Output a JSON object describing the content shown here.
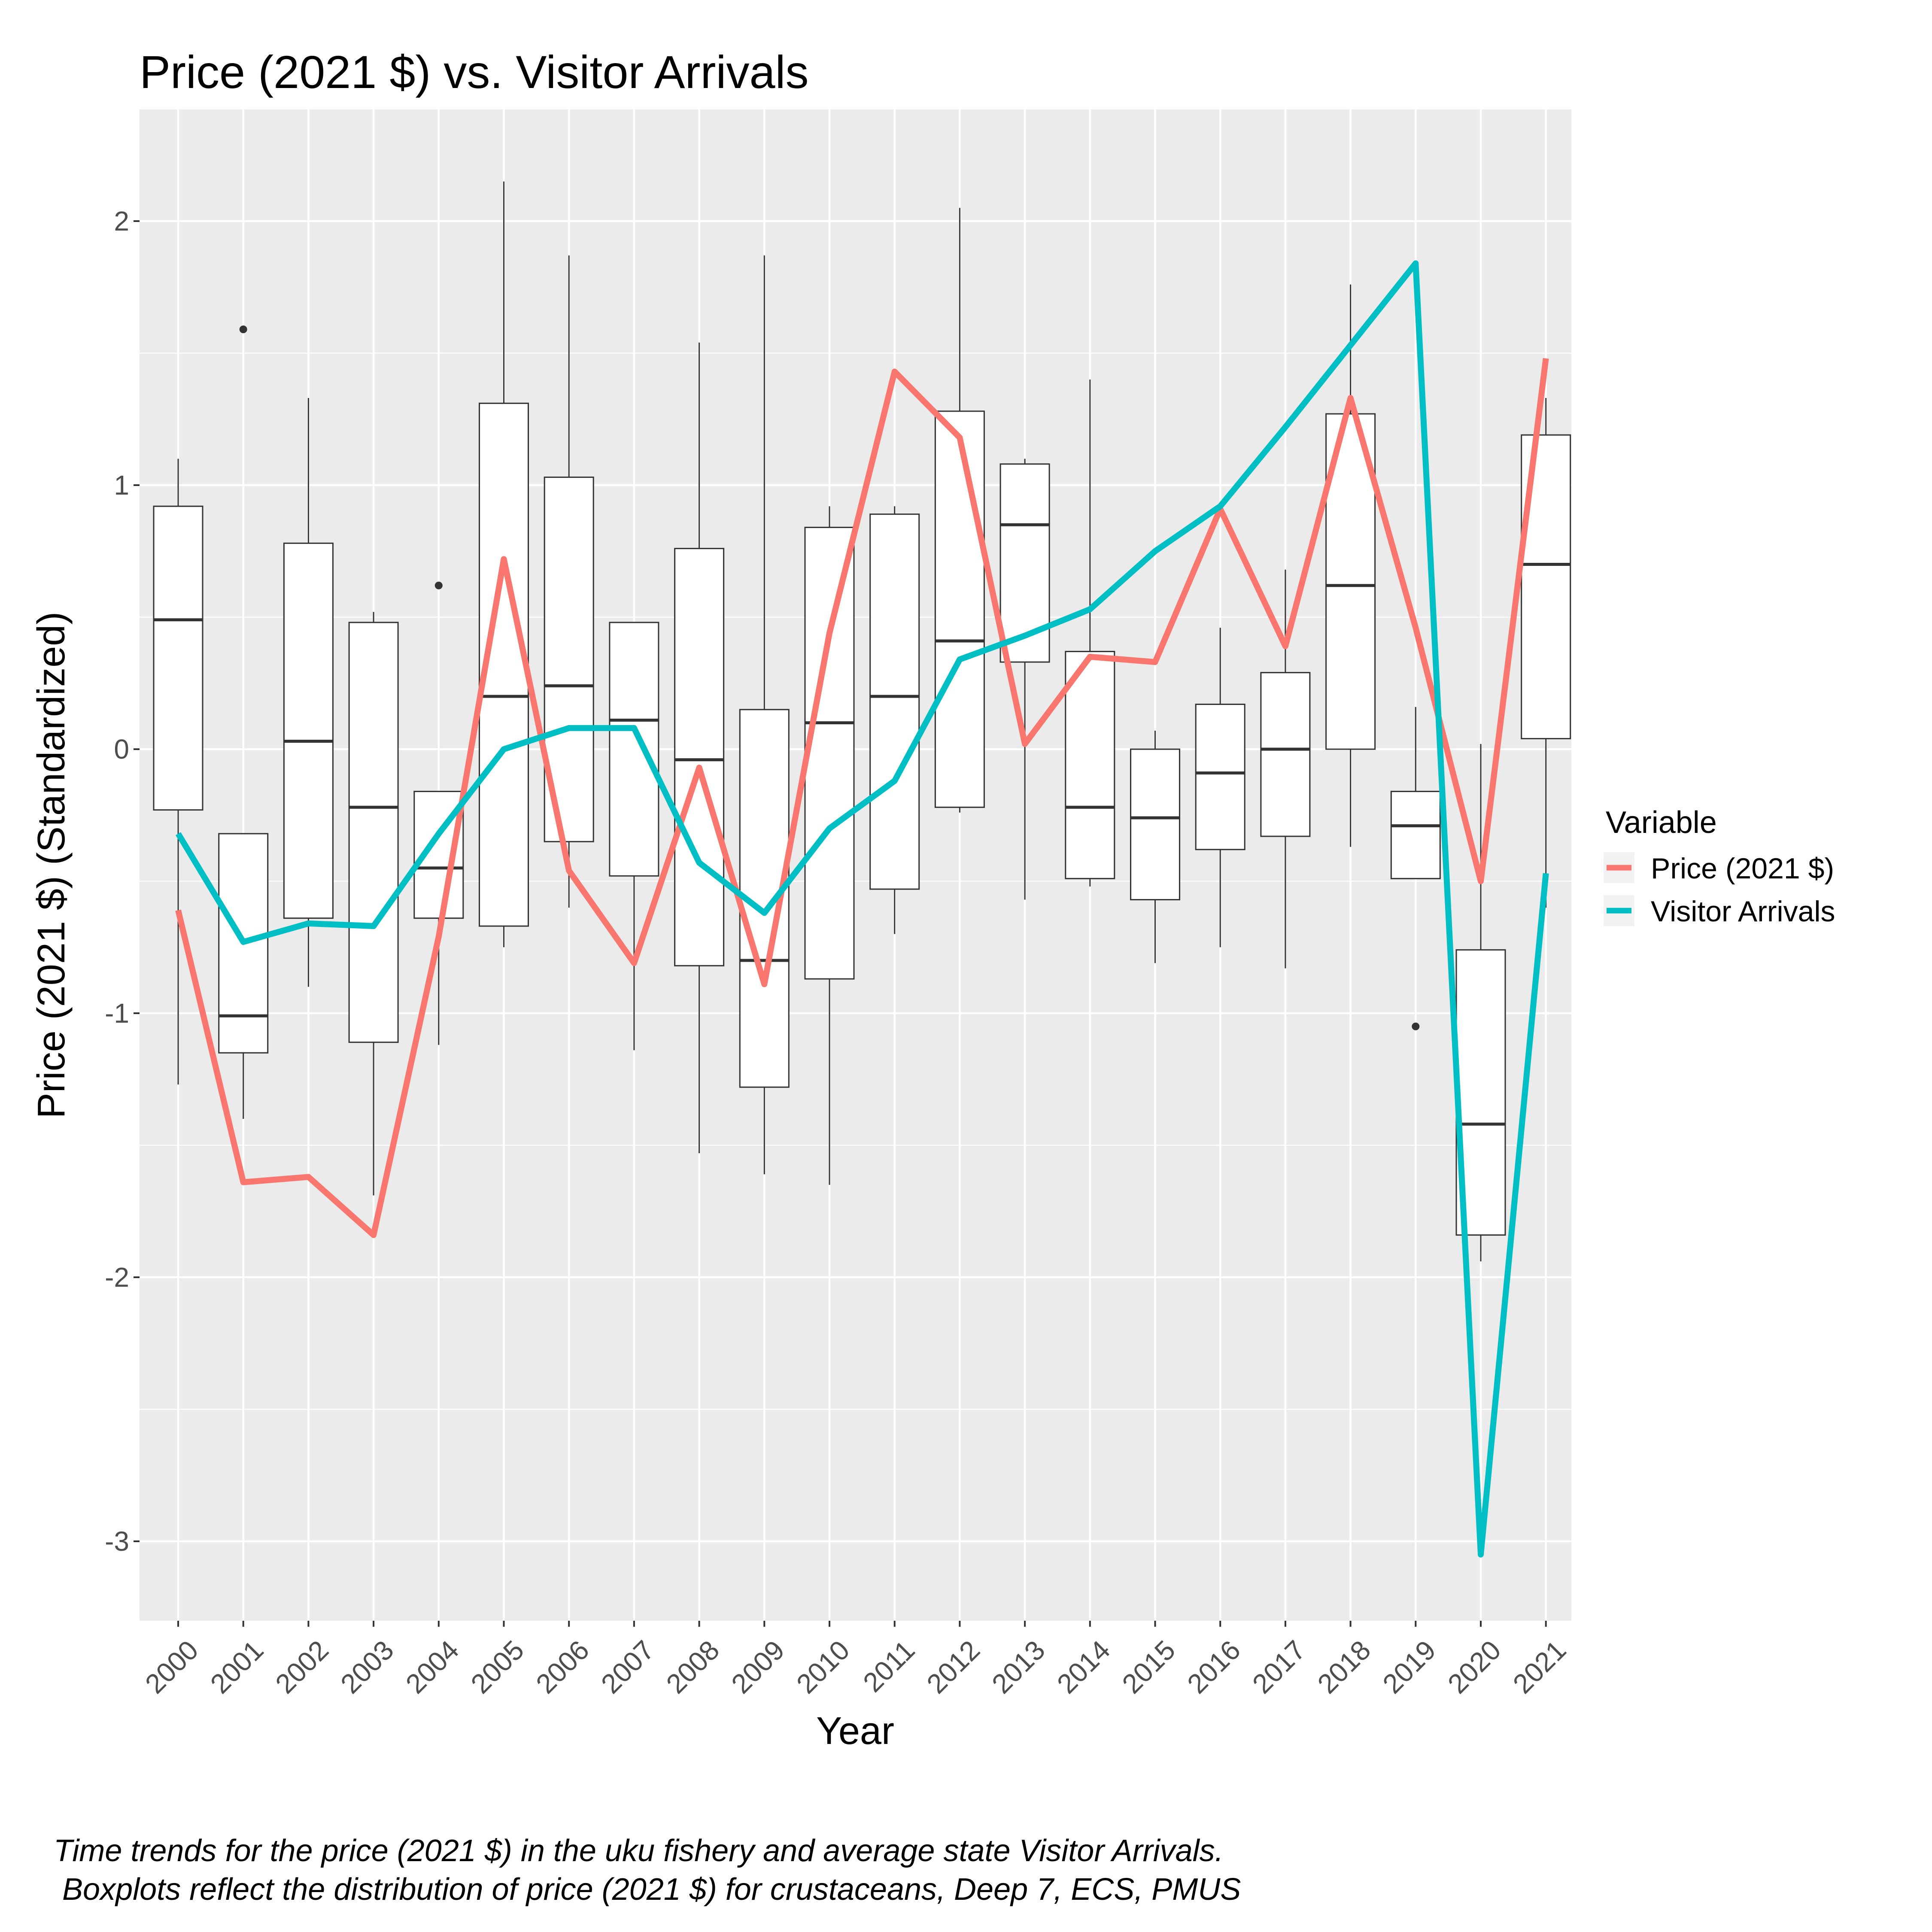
{
  "chart_data": {
    "type": "boxplot+line",
    "title": "Price (2021 $) vs. Visitor Arrivals",
    "xlabel": "Year",
    "ylabel": "Price (2021 $) (Standardized)",
    "ylim": [
      -3.3,
      2.4
    ],
    "yticks": [
      "-3",
      "-2",
      "-1",
      "0",
      "1",
      "2"
    ],
    "ytick_values": [
      -3,
      -2,
      -1,
      0,
      1,
      2
    ],
    "categories": [
      "2000",
      "2001",
      "2002",
      "2003",
      "2004",
      "2005",
      "2006",
      "2007",
      "2008",
      "2009",
      "2010",
      "2011",
      "2012",
      "2013",
      "2014",
      "2015",
      "2016",
      "2017",
      "2018",
      "2019",
      "2020",
      "2021"
    ],
    "grid": true,
    "legend_position": "right",
    "legend_title": "Variable",
    "boxplots": [
      {
        "year": "2000",
        "min": -1.27,
        "q1": -0.23,
        "median": 0.49,
        "q3": 0.92,
        "max": 1.1,
        "outliers": []
      },
      {
        "year": "2001",
        "min": -1.4,
        "q1": -1.15,
        "median": -1.01,
        "q3": -0.32,
        "max": -0.32,
        "outliers": [
          1.59
        ]
      },
      {
        "year": "2002",
        "min": -0.9,
        "q1": -0.64,
        "median": 0.03,
        "q3": 0.78,
        "max": 1.33,
        "outliers": []
      },
      {
        "year": "2003",
        "min": -1.69,
        "q1": -1.11,
        "median": -0.22,
        "q3": 0.48,
        "max": 0.52,
        "outliers": []
      },
      {
        "year": "2004",
        "min": -1.12,
        "q1": -0.64,
        "median": -0.45,
        "q3": -0.16,
        "max": -0.16,
        "outliers": [
          0.62
        ]
      },
      {
        "year": "2005",
        "min": -0.75,
        "q1": -0.67,
        "median": 0.2,
        "q3": 1.31,
        "max": 2.15,
        "outliers": []
      },
      {
        "year": "2006",
        "min": -0.6,
        "q1": -0.35,
        "median": 0.24,
        "q3": 1.03,
        "max": 1.87,
        "outliers": []
      },
      {
        "year": "2007",
        "min": -1.14,
        "q1": -0.48,
        "median": 0.11,
        "q3": 0.48,
        "max": 0.48,
        "outliers": []
      },
      {
        "year": "2008",
        "min": -1.53,
        "q1": -0.82,
        "median": -0.04,
        "q3": 0.76,
        "max": 1.54,
        "outliers": []
      },
      {
        "year": "2009",
        "min": -1.61,
        "q1": -1.28,
        "median": -0.8,
        "q3": 0.15,
        "max": 1.87,
        "outliers": []
      },
      {
        "year": "2010",
        "min": -1.65,
        "q1": -0.87,
        "median": 0.1,
        "q3": 0.84,
        "max": 0.92,
        "outliers": []
      },
      {
        "year": "2011",
        "min": -0.7,
        "q1": -0.53,
        "median": 0.2,
        "q3": 0.89,
        "max": 0.92,
        "outliers": []
      },
      {
        "year": "2012",
        "min": -0.24,
        "q1": -0.22,
        "median": 0.41,
        "q3": 1.28,
        "max": 2.05,
        "outliers": []
      },
      {
        "year": "2013",
        "min": -0.57,
        "q1": 0.33,
        "median": 0.85,
        "q3": 1.08,
        "max": 1.1,
        "outliers": []
      },
      {
        "year": "2014",
        "min": -0.52,
        "q1": -0.49,
        "median": -0.22,
        "q3": 0.37,
        "max": 1.4,
        "outliers": []
      },
      {
        "year": "2015",
        "min": -0.81,
        "q1": -0.57,
        "median": -0.26,
        "q3": 0.0,
        "max": 0.07,
        "outliers": []
      },
      {
        "year": "2016",
        "min": -0.75,
        "q1": -0.38,
        "median": -0.09,
        "q3": 0.17,
        "max": 0.46,
        "outliers": []
      },
      {
        "year": "2017",
        "min": -0.83,
        "q1": -0.33,
        "median": 0.0,
        "q3": 0.29,
        "max": 0.68,
        "outliers": []
      },
      {
        "year": "2018",
        "min": -0.37,
        "q1": 0.0,
        "median": 0.62,
        "q3": 1.27,
        "max": 1.76,
        "outliers": []
      },
      {
        "year": "2019",
        "min": -0.49,
        "q1": -0.49,
        "median": -0.29,
        "q3": -0.16,
        "max": 0.16,
        "outliers": [
          -1.05
        ]
      },
      {
        "year": "2020",
        "min": -1.94,
        "q1": -1.84,
        "median": -1.42,
        "q3": -0.76,
        "max": 0.02,
        "outliers": []
      },
      {
        "year": "2021",
        "min": -0.6,
        "q1": 0.04,
        "median": 0.7,
        "q3": 1.19,
        "max": 1.33,
        "outliers": []
      }
    ],
    "series": [
      {
        "name": "Price (2021 $)",
        "color": "#f8766d",
        "values": [
          -0.61,
          -1.64,
          -1.62,
          -1.84,
          -0.71,
          0.72,
          -0.46,
          -0.81,
          -0.07,
          -0.89,
          0.44,
          1.43,
          1.18,
          0.02,
          0.35,
          0.33,
          0.91,
          0.39,
          1.33,
          0.46,
          -0.5,
          1.48
        ]
      },
      {
        "name": "Visitor Arrivals",
        "color": "#00bfc4",
        "values": [
          -0.32,
          -0.73,
          -0.66,
          -0.67,
          -0.32,
          0.0,
          0.08,
          0.08,
          -0.43,
          -0.62,
          -0.3,
          -0.12,
          0.34,
          0.43,
          0.53,
          0.75,
          0.92,
          1.22,
          1.53,
          1.84,
          -3.05,
          -0.47
        ]
      }
    ]
  },
  "caption": {
    "line1": "Time trends for the price (2021 $) in the uku fishery and average state Visitor Arrivals.",
    "line2": " Boxplots reflect the distribution of price (2021 $) for crustaceans, Deep 7, ECS, PMUS"
  }
}
